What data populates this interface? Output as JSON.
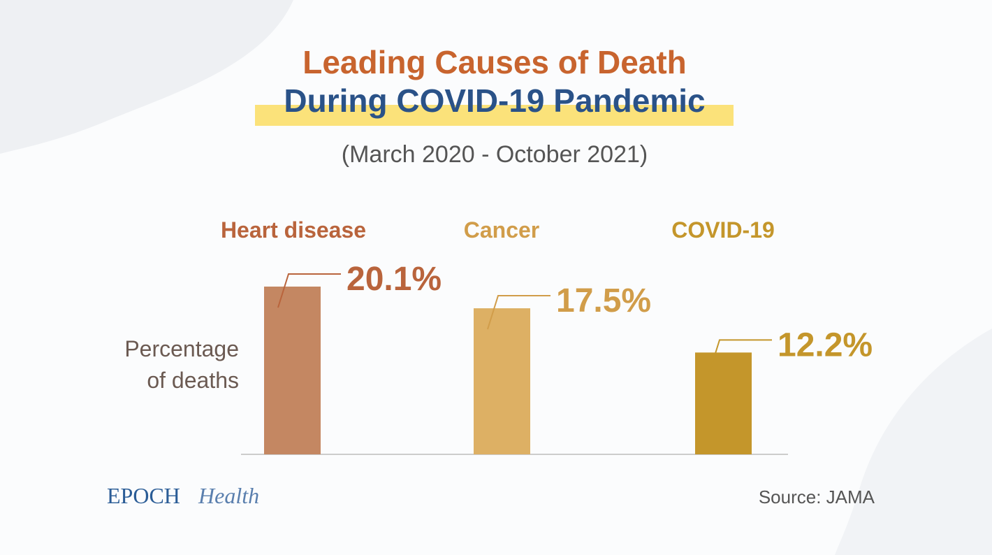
{
  "chart_data": {
    "type": "bar",
    "title": "Leading Causes of Death",
    "title_line2": "During COVID-19 Pandemic",
    "subtitle": "(March 2020 - October 2021)",
    "ylabel_line1": "Percentage",
    "ylabel_line2": "of deaths",
    "categories": [
      "Heart disease",
      "Cancer",
      "COVID-19"
    ],
    "values": [
      20.1,
      17.5,
      12.2
    ],
    "value_labels": [
      "20.1%",
      "17.5%",
      "12.2%"
    ],
    "colors": [
      "#c48762",
      "#ddb064",
      "#c4962b"
    ],
    "label_colors": [
      "#b9643c",
      "#d19d4a",
      "#c4962b"
    ],
    "ylim": [
      0,
      20.1
    ],
    "grid": false
  },
  "footer": {
    "logo_main": "EPOCH",
    "logo_sub": "Health",
    "source": "Source: JAMA"
  }
}
